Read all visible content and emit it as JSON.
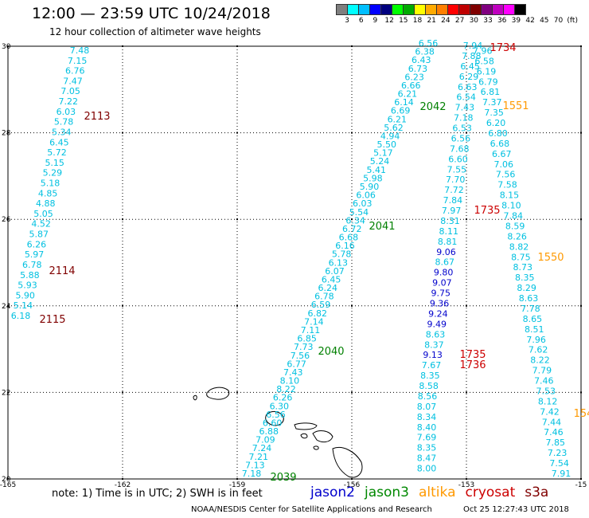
{
  "header": {
    "title": "12:00 — 23:59 UTC 10/24/2018",
    "subtitle": "12 hour collection of altimeter wave heights"
  },
  "legend": {
    "colors": [
      "#7f7f7f",
      "#00ffff",
      "#00bfff",
      "#0000ff",
      "#00007f",
      "#00ff00",
      "#00aa00",
      "#ffff00",
      "#ffaa00",
      "#ff7f00",
      "#ff0000",
      "#bf0000",
      "#800000",
      "#800080",
      "#bf00bf",
      "#ff00ff",
      "#000000"
    ],
    "labels": [
      "3",
      "6",
      "9",
      "12",
      "15",
      "18",
      "21",
      "24",
      "27",
      "30",
      "33",
      "36",
      "39",
      "42",
      "45",
      "70",
      "(ft)"
    ]
  },
  "axes": {
    "lon_ticks": [
      "-165",
      "-162",
      "-159",
      "-156",
      "-153",
      "-15"
    ],
    "lat_ticks": [
      "30",
      "28",
      "26",
      "24",
      "22",
      "20"
    ]
  },
  "tracks": [
    {
      "color": "#00c0e0",
      "points": [
        {
          "v": "7.48"
        },
        {
          "v": "7.15"
        },
        {
          "v": "6.76"
        },
        {
          "v": "7.47"
        },
        {
          "v": "7.05"
        },
        {
          "v": "7.22"
        },
        {
          "v": "6.03"
        },
        {
          "v": "5.78"
        },
        {
          "v": "5.34"
        },
        {
          "v": "6.45"
        },
        {
          "v": "5.72"
        },
        {
          "v": "5.15"
        },
        {
          "v": "5.29"
        },
        {
          "v": "5.18"
        },
        {
          "v": "4.85"
        },
        {
          "v": "4.88"
        },
        {
          "v": "5.05"
        },
        {
          "v": "4.52"
        },
        {
          "v": "5.87"
        },
        {
          "v": "6.26"
        },
        {
          "v": "5.97"
        },
        {
          "v": "6.78"
        },
        {
          "v": "5.88"
        },
        {
          "v": "5.93"
        },
        {
          "v": "5.90"
        },
        {
          "v": "5.14"
        },
        {
          "v": "6.18"
        }
      ]
    },
    {
      "color": "#00c0e0",
      "points": [
        {
          "v": "6.56"
        },
        {
          "v": "6.38"
        },
        {
          "v": "6.43"
        },
        {
          "v": "6.73"
        },
        {
          "v": "6.23"
        },
        {
          "v": "6.66"
        },
        {
          "v": "6.21"
        },
        {
          "v": "6.14"
        },
        {
          "v": "6.69"
        },
        {
          "v": "6.21"
        },
        {
          "v": "5.62"
        },
        {
          "v": "4.94"
        },
        {
          "v": "5.50"
        },
        {
          "v": "5.17"
        },
        {
          "v": "5.24"
        },
        {
          "v": "5.41"
        },
        {
          "v": "5.98"
        },
        {
          "v": "5.90"
        },
        {
          "v": "6.06"
        },
        {
          "v": "6.03"
        },
        {
          "v": "5.54"
        },
        {
          "v": "6.34"
        },
        {
          "v": "6.72"
        },
        {
          "v": "6.68"
        },
        {
          "v": "6.16"
        },
        {
          "v": "5.78"
        },
        {
          "v": "6.13"
        },
        {
          "v": "6.07"
        },
        {
          "v": "6.45"
        },
        {
          "v": "6.24"
        },
        {
          "v": "6.78"
        },
        {
          "v": "6.59"
        },
        {
          "v": "6.82"
        },
        {
          "v": "7.14"
        },
        {
          "v": "7.11"
        },
        {
          "v": "6.85"
        },
        {
          "v": "7.73"
        },
        {
          "v": "7.56"
        },
        {
          "v": "6.77"
        },
        {
          "v": "7.43"
        },
        {
          "v": "8.10"
        },
        {
          "v": "8.22"
        },
        {
          "v": "6.26"
        },
        {
          "v": "6.30"
        },
        {
          "v": "6.56"
        },
        {
          "v": "6.60"
        },
        {
          "v": "6.88"
        },
        {
          "v": "7.09"
        },
        {
          "v": "7.24"
        },
        {
          "v": "7.21"
        },
        {
          "v": "7.13"
        },
        {
          "v": "7.18"
        }
      ]
    },
    {
      "color": "#00c0e0",
      "points": [
        {
          "v": "7.94"
        },
        {
          "v": "7.96"
        },
        {
          "v": "7.88"
        },
        {
          "v": "6.58"
        },
        {
          "v": "6.45"
        },
        {
          "v": "6.19"
        },
        {
          "v": "6.29"
        },
        {
          "v": "6.79"
        },
        {
          "v": "6.63"
        },
        {
          "v": "6.81"
        },
        {
          "v": "6.54"
        },
        {
          "v": "7.37"
        },
        {
          "v": "7.43"
        },
        {
          "v": "7.35"
        },
        {
          "v": "7.18"
        },
        {
          "v": "6.20"
        },
        {
          "v": "6.53"
        },
        {
          "v": "6.80"
        },
        {
          "v": "6.56"
        },
        {
          "v": "6.68"
        },
        {
          "v": "7.68"
        },
        {
          "v": "6.67"
        },
        {
          "v": "6.60"
        },
        {
          "v": "7.06"
        },
        {
          "v": "7.55"
        },
        {
          "v": "7.56"
        },
        {
          "v": "7.70"
        },
        {
          "v": "7.58"
        },
        {
          "v": "7.72"
        },
        {
          "v": "8.15"
        },
        {
          "v": "7.84"
        },
        {
          "v": "8.10"
        },
        {
          "v": "7.97"
        },
        {
          "v": "7.84"
        },
        {
          "v": "8.31"
        },
        {
          "v": "8.59"
        },
        {
          "v": "8.11"
        },
        {
          "v": "8.26"
        },
        {
          "v": "8.81"
        },
        {
          "v": "8.82"
        },
        {
          "v": "9.06"
        },
        {
          "v": "8.75"
        },
        {
          "v": "8.67"
        },
        {
          "v": "8.73"
        },
        {
          "v": "9.80"
        },
        {
          "v": "8.35"
        },
        {
          "v": "9.07"
        },
        {
          "v": "8.29"
        },
        {
          "v": "9.75"
        },
        {
          "v": "8.63"
        },
        {
          "v": "9.36"
        },
        {
          "v": "7.78"
        },
        {
          "v": "9.24"
        },
        {
          "v": "8.65"
        },
        {
          "v": "9.49"
        },
        {
          "v": "8.51"
        },
        {
          "v": "8.63"
        },
        {
          "v": "7.96"
        },
        {
          "v": "8.37"
        },
        {
          "v": "7.62"
        },
        {
          "v": "9.13"
        },
        {
          "v": "8.22"
        },
        {
          "v": "7.67"
        },
        {
          "v": "7.79"
        },
        {
          "v": "8.35"
        },
        {
          "v": "7.46"
        },
        {
          "v": "8.58"
        },
        {
          "v": "7.53"
        },
        {
          "v": "8.56"
        },
        {
          "v": "8.12"
        },
        {
          "v": "8.07"
        },
        {
          "v": "7.42"
        },
        {
          "v": "8.34"
        },
        {
          "v": "7.44"
        },
        {
          "v": "8.40"
        },
        {
          "v": "7.46"
        },
        {
          "v": "7.69"
        },
        {
          "v": "7.85"
        },
        {
          "v": "8.35"
        },
        {
          "v": "7.23"
        },
        {
          "v": "8.47"
        },
        {
          "v": "7.54"
        },
        {
          "v": "8.00"
        },
        {
          "v": "7.91"
        }
      ]
    }
  ],
  "time_labels": [
    {
      "t": "2113",
      "color": "#800000"
    },
    {
      "t": "2114",
      "color": "#800000"
    },
    {
      "t": "2115",
      "color": "#800000"
    },
    {
      "t": "2042",
      "color": "#008000"
    },
    {
      "t": "2041",
      "color": "#008000"
    },
    {
      "t": "2040",
      "color": "#008000"
    },
    {
      "t": "2039",
      "color": "#008000"
    },
    {
      "t": "1734",
      "color": "#cc0000"
    },
    {
      "t": "1551",
      "color": "#ff9900"
    },
    {
      "t": "1735",
      "color": "#cc0000"
    },
    {
      "t": "1550",
      "color": "#ff9900"
    },
    {
      "t": "1735",
      "color": "#cc0000"
    },
    {
      "t": "1736",
      "color": "#cc0000"
    },
    {
      "t": "154",
      "color": "#ff9900"
    }
  ],
  "note": "note:  1) Time is in UTC;  2) SWH is in feet",
  "satellites": [
    {
      "name": "jason2",
      "color": "#0000cc"
    },
    {
      "name": "jason3",
      "color": "#008800"
    },
    {
      "name": "altika",
      "color": "#ff9900"
    },
    {
      "name": "cryosat",
      "color": "#cc0000"
    },
    {
      "name": "s3a",
      "color": "#800000"
    }
  ],
  "footer": {
    "source": "NOAA/NESDIS Center for Satellite Applications and Research",
    "timestamp": "Oct 25 12:27:43 UTC 2018"
  }
}
